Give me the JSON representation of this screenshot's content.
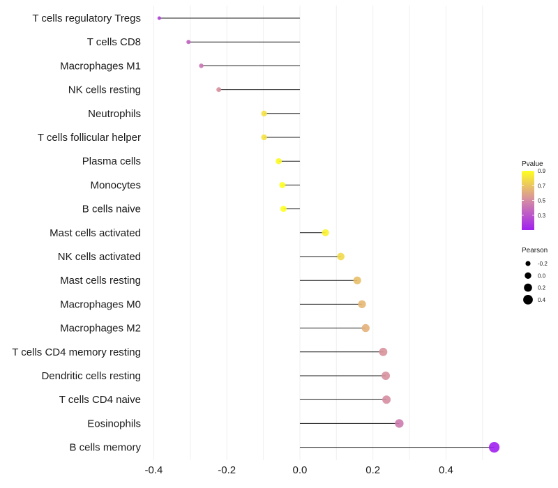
{
  "chart_data": {
    "type": "lollipop",
    "title": "",
    "xlabel": "",
    "ylabel": "",
    "xlim": [
      -0.42,
      0.55
    ],
    "xticks": [
      -0.4,
      -0.2,
      0.0,
      0.2,
      0.4
    ],
    "xtick_labels": [
      "-0.4",
      "-0.2",
      "0.0",
      "0.2",
      "0.4"
    ],
    "grid": true,
    "points": [
      {
        "label": "T cells regulatory  Tregs",
        "pearson": -0.385,
        "pvalue": 0.22
      },
      {
        "label": "T cells CD8",
        "pearson": -0.305,
        "pvalue": 0.35
      },
      {
        "label": "Macrophages M1",
        "pearson": -0.27,
        "pvalue": 0.42
      },
      {
        "label": "NK cells resting",
        "pearson": -0.222,
        "pvalue": 0.52
      },
      {
        "label": "Neutrophils",
        "pearson": -0.098,
        "pvalue": 0.8
      },
      {
        "label": "T cells follicular helper",
        "pearson": -0.098,
        "pvalue": 0.8
      },
      {
        "label": "Plasma cells",
        "pearson": -0.058,
        "pvalue": 0.88
      },
      {
        "label": "Monocytes",
        "pearson": -0.048,
        "pvalue": 0.9
      },
      {
        "label": "B cells naive",
        "pearson": -0.045,
        "pvalue": 0.9
      },
      {
        "label": "Mast cells activated",
        "pearson": 0.07,
        "pvalue": 0.86
      },
      {
        "label": "NK cells activated",
        "pearson": 0.112,
        "pvalue": 0.77
      },
      {
        "label": "Mast cells resting",
        "pearson": 0.157,
        "pvalue": 0.68
      },
      {
        "label": "Macrophages M0",
        "pearson": 0.17,
        "pvalue": 0.65
      },
      {
        "label": "Macrophages M2",
        "pearson": 0.18,
        "pvalue": 0.63
      },
      {
        "label": "T cells CD4 memory resting",
        "pearson": 0.228,
        "pvalue": 0.53
      },
      {
        "label": "Dendritic cells resting",
        "pearson": 0.235,
        "pvalue": 0.52
      },
      {
        "label": "T cells CD4 naive",
        "pearson": 0.237,
        "pvalue": 0.51
      },
      {
        "label": "Eosinophils",
        "pearson": 0.272,
        "pvalue": 0.44
      },
      {
        "label": "B cells memory",
        "pearson": 0.532,
        "pvalue": 0.1
      }
    ],
    "legend_color": {
      "title": "Pvalue",
      "position": "right",
      "range": [
        0.1,
        0.9
      ],
      "ticks": [
        0.3,
        0.5,
        0.7,
        0.9
      ],
      "tick_labels": [
        "0.3",
        "0.5",
        "0.7",
        "0.9"
      ],
      "color_low": "#a020f0",
      "color_mid": "#d58ba4",
      "color_high": "#ffff20"
    },
    "legend_size": {
      "title": "Pearson",
      "position": "right",
      "values": [
        -0.2,
        0.0,
        0.2,
        0.4
      ],
      "labels": [
        "-0.2",
        "0.0",
        "0.2",
        "0.4"
      ],
      "point_color": "#000000"
    }
  }
}
